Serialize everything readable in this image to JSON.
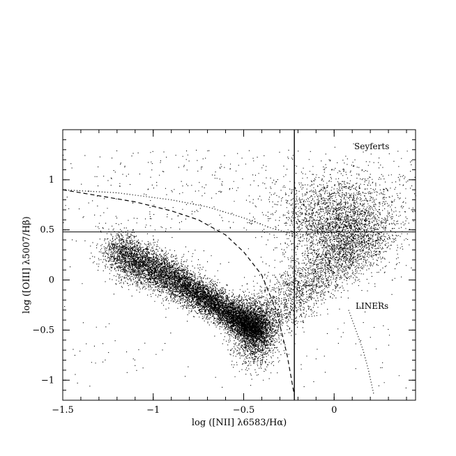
{
  "chart_data": {
    "type": "scatter",
    "title": "",
    "xlabel": "log ([NII] λ6583/Hα)",
    "ylabel": "log ([OIII] λ5007/Hβ)",
    "xlim": [
      -1.5,
      0.45
    ],
    "ylim": [
      -1.2,
      1.5
    ],
    "x_ticks": [
      -1.5,
      -1,
      -0.5,
      0
    ],
    "x_tick_labels": [
      "−1.5",
      "−1",
      "−0.5",
      "0"
    ],
    "y_ticks": [
      -1,
      -0.5,
      0,
      0.5,
      1
    ],
    "y_tick_labels": [
      "−1",
      "−0.5",
      "0",
      "0.5",
      "1"
    ],
    "grid": false,
    "reference_lines": {
      "horizontal_y": 0.48,
      "vertical_x": -0.22
    },
    "annotations": [
      "Seyferts",
      "LINERs"
    ],
    "series": [
      {
        "style": "scatter points (dense, small black dots)",
        "clusters": [
          {
            "region": "star-forming branch",
            "x_range": [
              -1.2,
              -0.35
            ],
            "y_range": [
              -1.05,
              0.6
            ],
            "peak": [
              -0.45,
              -0.45
            ],
            "approx_points": 9000
          },
          {
            "region": "AGN / Seyfert cloud",
            "x_range": [
              -0.3,
              0.45
            ],
            "y_range": [
              -0.5,
              1.25
            ],
            "peak": [
              0.0,
              0.6
            ],
            "approx_points": 4500
          },
          {
            "region": "upper sparse scatter",
            "x_range": [
              -1.5,
              0.45
            ],
            "y_range": [
              0.5,
              1.3
            ],
            "approx_points": 300
          }
        ]
      },
      {
        "style": "dashed curve",
        "x": [
          -1.5,
          -1.3,
          -1.1,
          -0.9,
          -0.75,
          -0.6,
          -0.5,
          -0.4,
          -0.32,
          -0.26,
          -0.22
        ],
        "y": [
          0.9,
          0.84,
          0.78,
          0.69,
          0.6,
          0.45,
          0.28,
          0.05,
          -0.3,
          -0.75,
          -1.15
        ]
      },
      {
        "style": "dotted curve",
        "x": [
          -1.5,
          -1.2,
          -0.9,
          -0.7,
          -0.5,
          -0.35,
          -0.25,
          -0.15
        ],
        "y": [
          0.9,
          0.87,
          0.8,
          0.73,
          0.62,
          0.52,
          0.47,
          0.45
        ]
      },
      {
        "style": "dotted curve (LINER boundary)",
        "x": [
          0.08,
          0.12,
          0.16,
          0.19,
          0.22
        ],
        "y": [
          -0.3,
          -0.5,
          -0.7,
          -0.9,
          -1.15
        ]
      }
    ]
  }
}
